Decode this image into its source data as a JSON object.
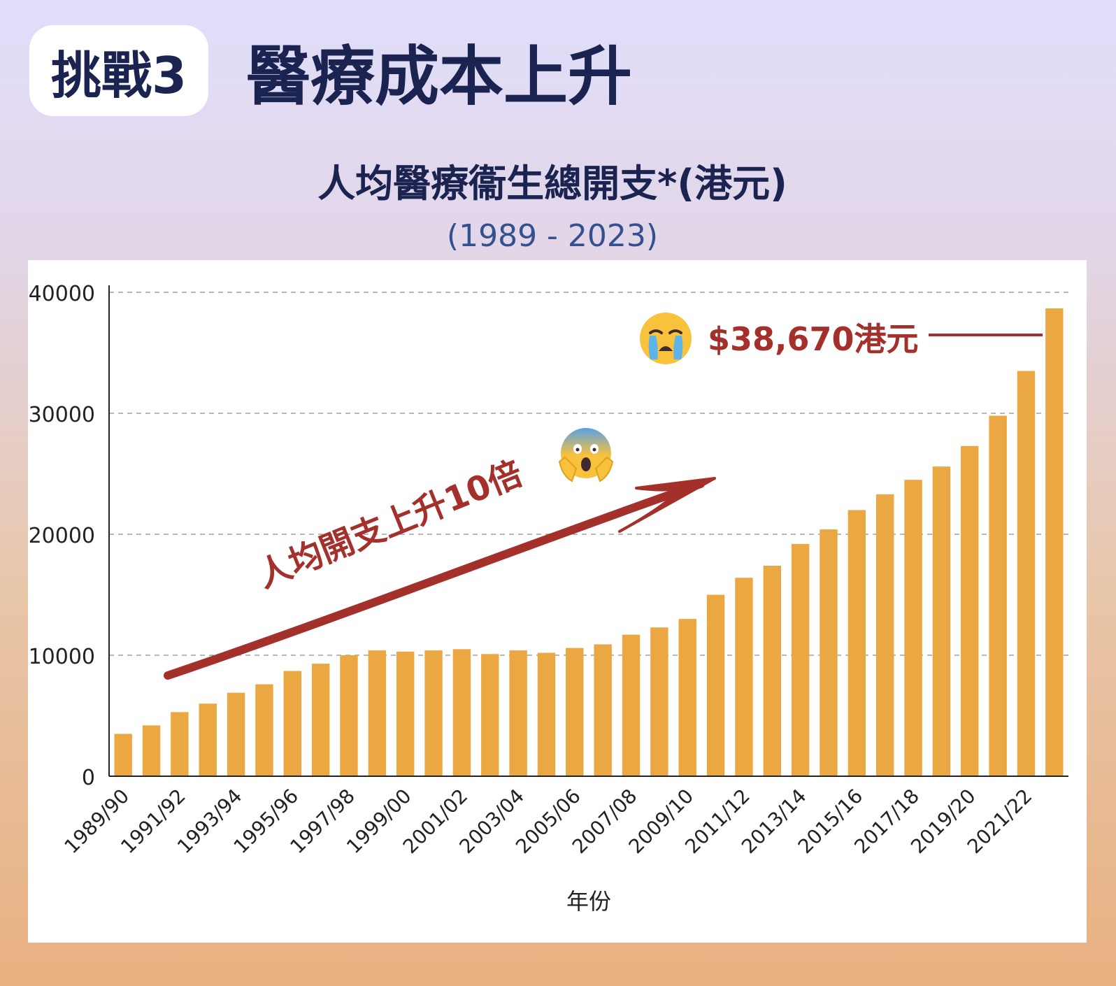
{
  "header": {
    "badge": "挑戰3",
    "headline": "醫療成本上升"
  },
  "colors": {
    "bar": "#EBA842",
    "accent": "#A4302C",
    "navy": "#1B2450",
    "grid": "#A0A0A0"
  },
  "annotations": {
    "value_label": "$38,670港元",
    "trend_label": "人均開支上升10倍",
    "cry_icon": "crying-face-icon",
    "shock_icon": "screaming-face-icon"
  },
  "chart_data": {
    "type": "bar",
    "title": "人均醫療衞生總開支*(港元)",
    "subtitle": "(1989 - 2023)",
    "xlabel": "年份",
    "ylabel": "",
    "ylim": [
      0,
      40000
    ],
    "yticks": [
      0,
      10000,
      20000,
      30000,
      40000
    ],
    "grid": true,
    "categories": [
      "1989/90",
      "1990/91",
      "1991/92",
      "1992/93",
      "1993/94",
      "1994/95",
      "1995/96",
      "1996/97",
      "1997/98",
      "1998/99",
      "1999/00",
      "2000/01",
      "2001/02",
      "2002/03",
      "2003/04",
      "2004/05",
      "2005/06",
      "2006/07",
      "2007/08",
      "2008/09",
      "2009/10",
      "2010/11",
      "2011/12",
      "2012/13",
      "2013/14",
      "2014/15",
      "2015/16",
      "2016/17",
      "2017/18",
      "2018/19",
      "2019/20",
      "2020/21",
      "2021/22",
      "2022/23"
    ],
    "tick_labels": [
      "1989/90",
      "1991/92",
      "1993/94",
      "1995/96",
      "1997/98",
      "1999/00",
      "2001/02",
      "2003/04",
      "2005/06",
      "2007/08",
      "2009/10",
      "2011/12",
      "2013/14",
      "2015/16",
      "2017/18",
      "2019/20",
      "2021/22"
    ],
    "values": [
      3500,
      4200,
      5300,
      6000,
      6900,
      7600,
      8700,
      9300,
      10000,
      10400,
      10300,
      10400,
      10500,
      10100,
      10400,
      10200,
      10600,
      10900,
      11700,
      12300,
      13000,
      15000,
      16400,
      17400,
      19200,
      20400,
      22000,
      23300,
      24500,
      25600,
      27300,
      29800,
      33500,
      38670
    ]
  }
}
